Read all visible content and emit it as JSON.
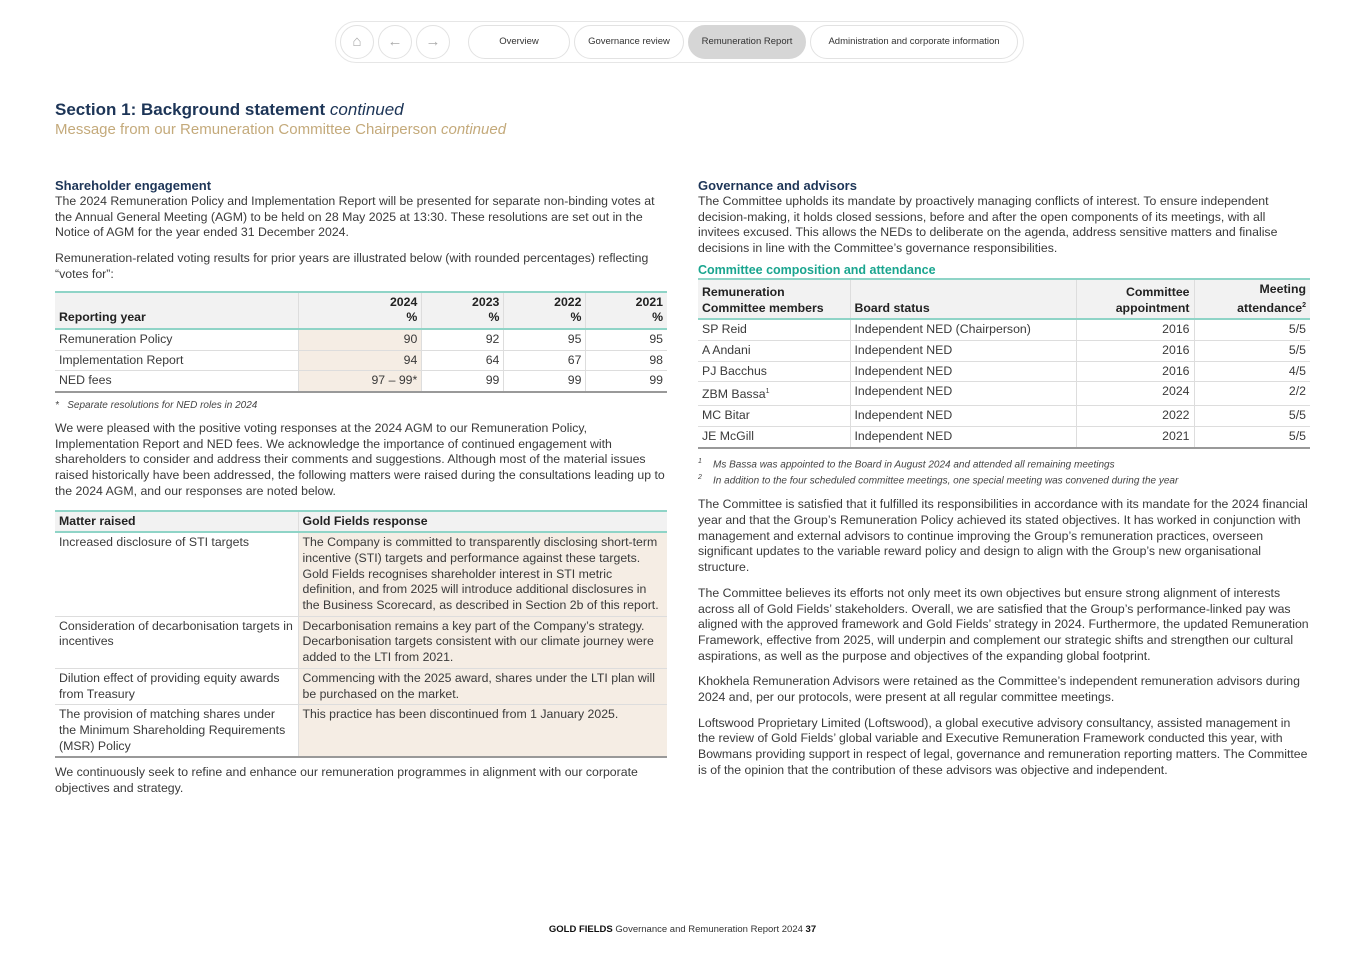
{
  "nav": {
    "icons": [
      "home-icon",
      "arrow-left-icon",
      "arrow-right-icon"
    ],
    "tabs": [
      {
        "label": "Overview"
      },
      {
        "label": "Governance review"
      },
      {
        "label": "Remuneration Report",
        "active": true
      },
      {
        "label": "Administration and corporate information"
      }
    ]
  },
  "header": {
    "title": "Section 1: Background statement",
    "title_suffix": "continued",
    "subtitle": "Message from our Remuneration Committee Chairperson",
    "subtitle_suffix": "continued"
  },
  "left": {
    "heading": "Shareholder engagement",
    "p1": "The 2024 Remuneration Policy and Implementation Report will be presented for separate non-binding votes at the Annual General Meeting (AGM) to be held on 28 May 2025 at 13:30. These resolutions are set out in the Notice of AGM for the year ended 31 December 2024.",
    "p2": "Remuneration-related voting results for prior years are illustrated below (with rounded percentages) reflecting “votes for”:",
    "votes": {
      "header": [
        "Reporting year",
        "2024",
        "2023",
        "2022",
        "2021"
      ],
      "unit": "%",
      "rows": [
        [
          "Remuneration Policy",
          "90",
          "92",
          "95",
          "95"
        ],
        [
          "Implementation Report",
          "94",
          "64",
          "67",
          "98"
        ],
        [
          "NED fees",
          "97 – 99*",
          "99",
          "99",
          "99"
        ]
      ]
    },
    "votes_footnote_mark": "*",
    "votes_footnote": "Separate resolutions for NED roles in 2024",
    "p3": "We were pleased with the positive voting responses at the 2024 AGM to our Remuneration Policy, Implementation Report and NED fees. We acknowledge the importance of continued engagement with shareholders to consider and address their comments and suggestions. Although most of the material issues raised historically have been addressed, the following matters were raised during the consultations leading up to the 2024 AGM, and our responses are noted below.",
    "matters": {
      "header": [
        "Matter raised",
        "Gold Fields response"
      ],
      "rows": [
        [
          "Increased disclosure of STI targets",
          "The Company is committed to transparently disclosing short-term incentive (STI) targets and performance against these targets. Gold Fields recognises shareholder interest in STI metric definition, and from 2025 will introduce additional disclosures in the Business Scorecard, as described in Section 2b of this report."
        ],
        [
          "Consideration of decarbonisation targets in incentives",
          "Decarbonisation remains a key part of the Company’s strategy. Decarbonisation targets consistent with our climate journey were added to the LTI from 2021."
        ],
        [
          "Dilution effect of providing equity awards from Treasury",
          "Commencing with the 2025 award, shares under the LTI plan will be purchased on the market."
        ],
        [
          "The provision of matching shares under the Minimum Shareholding Requirements (MSR) Policy",
          "This practice has been discontinued from 1 January 2025."
        ]
      ]
    },
    "p4": "We continuously seek to refine and enhance our remuneration programmes in alignment with our corporate objectives and strategy."
  },
  "right": {
    "heading": "Governance and advisors",
    "p1": "The Committee upholds its mandate by proactively managing conflicts of interest. To ensure independent decision-making, it holds closed sessions, before and after the open components of its meetings, with all invitees excused. This allows the NEDs to deliberate on the agenda, address sensitive matters and finalise decisions in line with the Committee’s governance responsibilities.",
    "table_title": "Committee composition and attendance",
    "committee": {
      "header": [
        "Remuneration Committee members",
        "Board status",
        "Committee appointment",
        "Meeting attendance"
      ],
      "header_sup": "2",
      "rows": [
        [
          "SP Reid",
          "",
          "Independent NED (Chairperson)",
          "2016",
          "5/5"
        ],
        [
          "A Andani",
          "",
          "Independent NED",
          "2016",
          "5/5"
        ],
        [
          "PJ Bacchus",
          "",
          "Independent NED",
          "2016",
          "4/5"
        ],
        [
          "ZBM Bassa",
          "1",
          "Independent NED",
          "2024",
          "2/2"
        ],
        [
          "MC Bitar",
          "",
          "Independent NED",
          "2022",
          "5/5"
        ],
        [
          "JE McGill",
          "",
          "Independent NED",
          "2021",
          "5/5"
        ]
      ]
    },
    "footnotes": [
      {
        "mark": "1",
        "text": "Ms Bassa was appointed to the Board in August 2024 and attended all remaining meetings"
      },
      {
        "mark": "2",
        "text": "In addition to the four scheduled committee meetings, one special meeting was convened during the year"
      }
    ],
    "p2": "The Committee is satisfied that it fulfilled its responsibilities in accordance with its mandate for the 2024 financial year and that the Group’s Remuneration Policy achieved its stated objectives. It has worked in conjunction with management and external advisors to continue improving the Group’s remuneration practices, overseen significant updates to the variable reward policy and design to align with the Group’s new organisational structure.",
    "p3": "The Committee believes its efforts not only meet its own objectives but ensure strong alignment of interests across all of Gold Fields’ stakeholders. Overall, we are satisfied that the Group’s performance-linked pay was aligned with the approved framework and Gold Fields’ strategy in 2024. Furthermore, the updated Remuneration Framework, effective from 2025, will underpin and complement our strategic shifts and strengthen our cultural aspirations, as well as the purpose and objectives of the expanding global footprint.",
    "p4": "Khokhela Remuneration Advisors were retained as the Committee’s independent remuneration advisors during 2024 and, per our protocols, were present at all regular committee meetings.",
    "p5": "Loftswood Proprietary Limited (Loftswood), a global executive advisory consultancy, assisted management in the review of Gold Fields’ global variable and Executive Remuneration Framework conducted this year, with Bowmans providing support in respect of legal, governance and remuneration reporting matters. The Committee is of the opinion that the contribution of these advisors was objective and independent."
  },
  "footer": {
    "brand": "GOLD FIELDS",
    "text": "Governance and Remuneration Report 2024",
    "page": "37"
  },
  "colors": {
    "navy": "#1d3557",
    "gold": "#c4aa7b",
    "teal": "#1aa58f",
    "highlight": "#f5ede4"
  }
}
